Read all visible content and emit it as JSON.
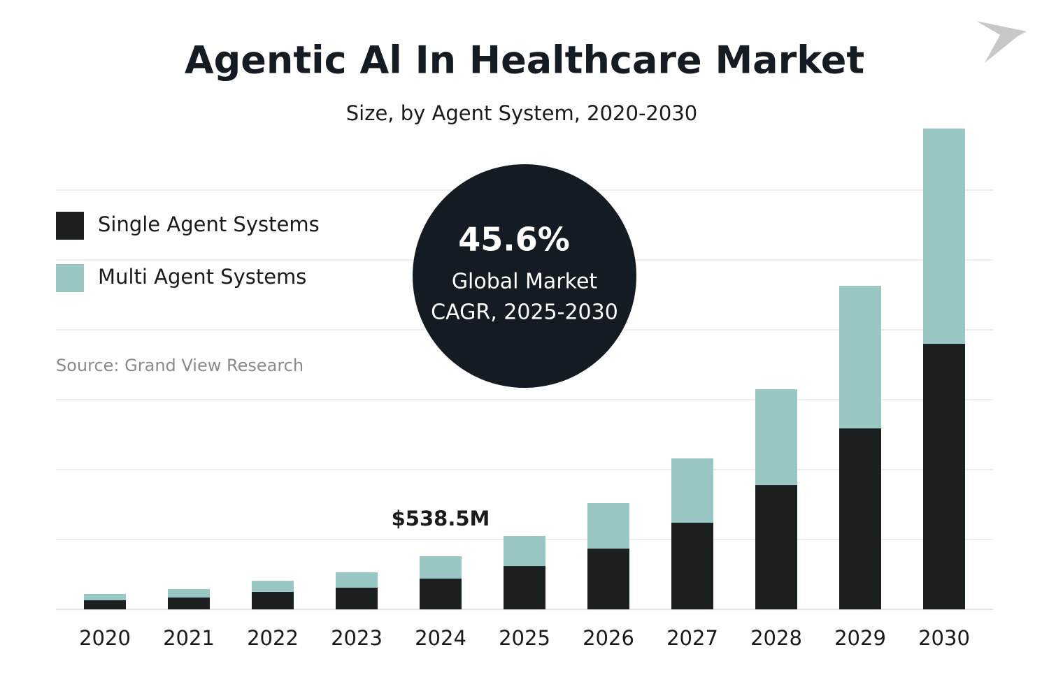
{
  "chart_data": {
    "type": "stacked_bar",
    "title": "Agentic Al In Healthcare Market",
    "subtitle": "Size, by Agent System, 2020-2030",
    "source": "Source: Grand View Research",
    "categories": [
      "2020",
      "2021",
      "2022",
      "2023",
      "2024",
      "2025",
      "2026",
      "2027",
      "2028",
      "2029",
      "2030"
    ],
    "series": [
      {
        "name": "Single Agent Systems",
        "color": "#1c1f20",
        "values": [
          92,
          120,
          177,
          220,
          312,
          439,
          616,
          879,
          1261,
          1835,
          2693
        ]
      },
      {
        "name": "Multi Agent Systems",
        "color": "#98c7c4",
        "values": [
          64,
          85,
          113,
          156,
          226.5,
          305,
          461,
          652,
          971,
          1446,
          2183
        ]
      }
    ],
    "ylim": [
      0,
      4900
    ],
    "grid": true,
    "annotations": [
      {
        "label": "$538.5M",
        "value": 538.5
      }
    ],
    "callout": {
      "value": "45.6%",
      "line1": "Global Market",
      "line2": "CAGR, 2025-2030"
    }
  }
}
